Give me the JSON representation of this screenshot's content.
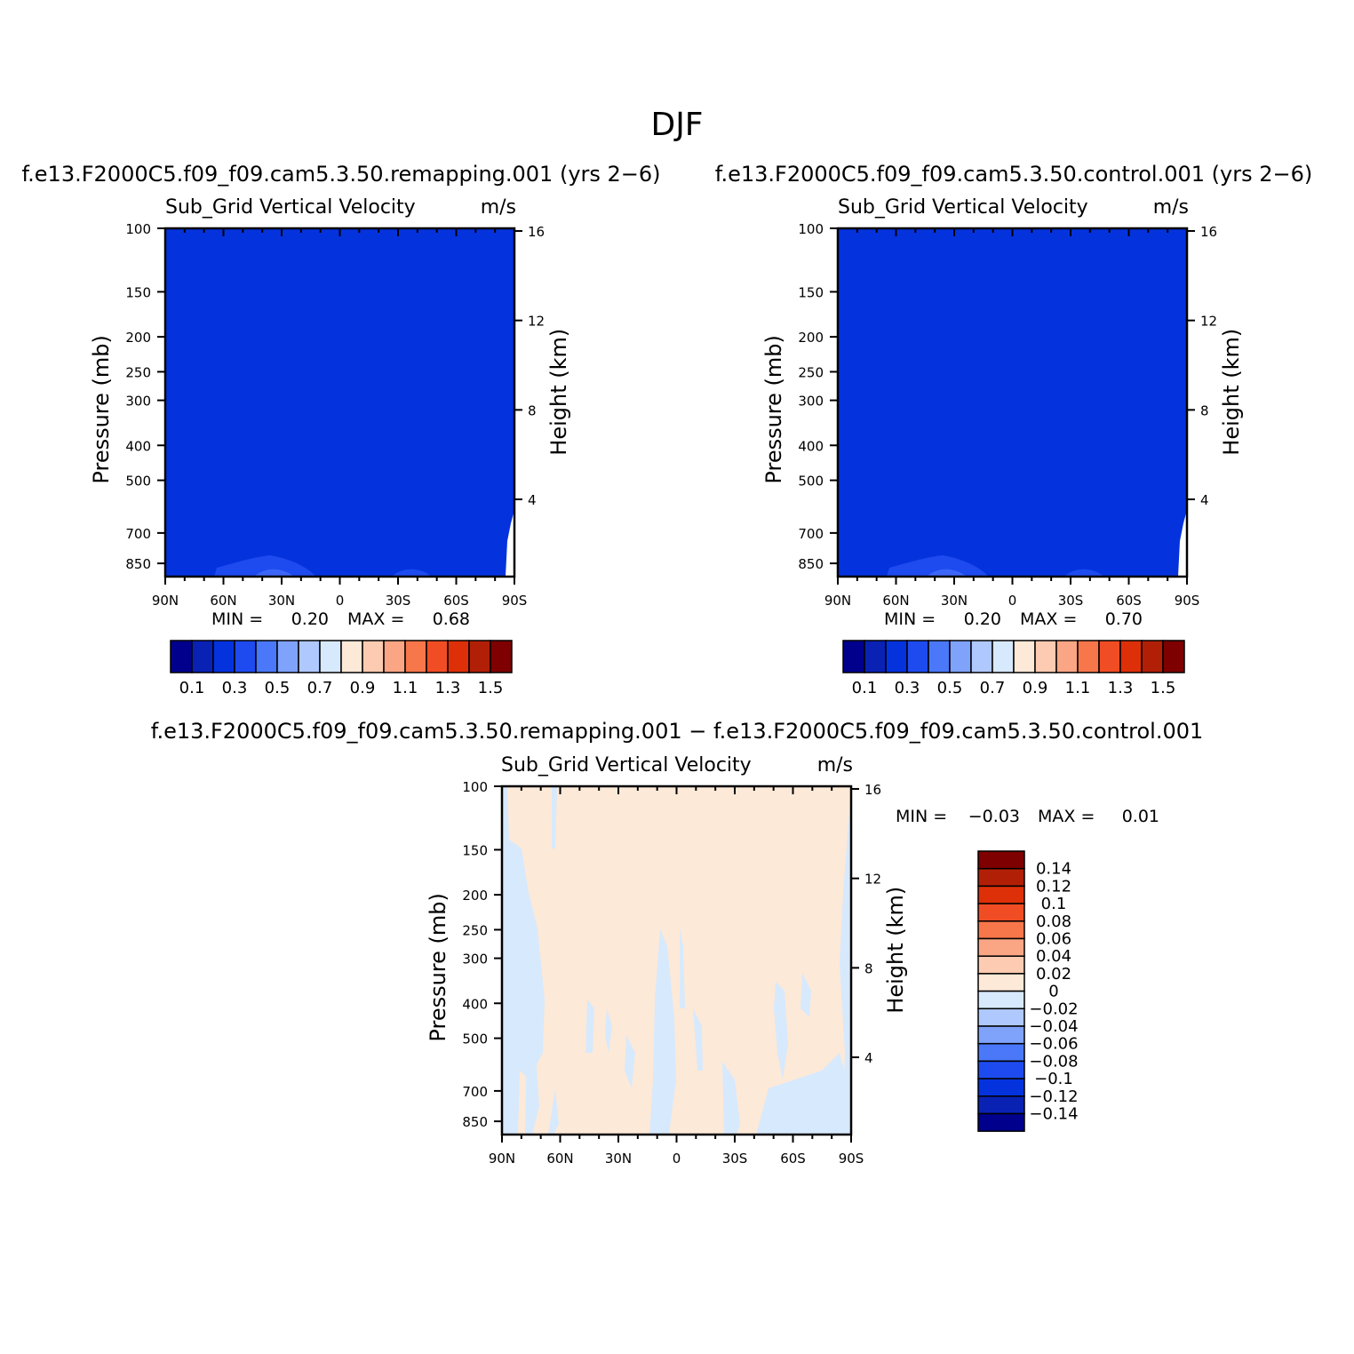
{
  "page": {
    "title": "DJF"
  },
  "colors": {
    "blue_field": "#0433DE",
    "blue_band": "#1E4BEF",
    "blue_band2": "#3C66F7",
    "diff_pos": "#FDE9D7",
    "diff_neg": "#D7E9FD",
    "axis": "#000000"
  },
  "palettes": {
    "top": [
      "#00008C",
      "#0A22B4",
      "#0433DE",
      "#1E4BEF",
      "#4A78F8",
      "#7FA2FB",
      "#AFC8FD",
      "#D7E9FD",
      "#FDE9D7",
      "#FCCBB1",
      "#FAA584",
      "#F7764A",
      "#F14D24",
      "#DE3008",
      "#B21F07",
      "#7E0000"
    ],
    "diff": [
      "#7E0000",
      "#B21F07",
      "#DE3008",
      "#F14D24",
      "#F7764A",
      "#FAA584",
      "#FCCBB1",
      "#FDE9D7",
      "#D7E9FD",
      "#AFC8FD",
      "#7FA2FB",
      "#4A78F8",
      "#1E4BEF",
      "#0433DE",
      "#0A22B4",
      "#00008C"
    ]
  },
  "chart_data": [
    {
      "type": "heatmap",
      "title": "f.e13.F2000C5.f09_f09.cam5.3.50.remapping.001 (yrs 2−6)",
      "subtitle": "Sub_Grid Vertical Velocity",
      "units": "m/s",
      "xlabel": "",
      "ylabel": "Pressure (mb)",
      "ylabel_right": "Height (km)",
      "x_ticks": [
        "90N",
        "60N",
        "30N",
        "0",
        "30S",
        "60S",
        "90S"
      ],
      "y_ticks": [
        "100",
        "150",
        "200",
        "250",
        "300",
        "400",
        "500",
        "700",
        "850"
      ],
      "y2_ticks": [
        "16",
        "12",
        "8",
        "4"
      ],
      "y_scale": "log",
      "ylim": [
        100,
        925
      ],
      "xlim": [
        -90,
        90
      ],
      "min_label": "MIN =",
      "min_value": "0.20",
      "max_label": "MAX =",
      "max_value": "0.68",
      "colorbar_labels": [
        "0.1",
        "0.3",
        "0.5",
        "0.7",
        "0.9",
        "1.1",
        "1.3",
        "1.5"
      ]
    },
    {
      "type": "heatmap",
      "title": "f.e13.F2000C5.f09_f09.cam5.3.50.control.001 (yrs 2−6)",
      "subtitle": "Sub_Grid Vertical Velocity",
      "units": "m/s",
      "xlabel": "",
      "ylabel": "Pressure (mb)",
      "ylabel_right": "Height (km)",
      "x_ticks": [
        "90N",
        "60N",
        "30N",
        "0",
        "30S",
        "60S",
        "90S"
      ],
      "y_ticks": [
        "100",
        "150",
        "200",
        "250",
        "300",
        "400",
        "500",
        "700",
        "850"
      ],
      "y2_ticks": [
        "16",
        "12",
        "8",
        "4"
      ],
      "y_scale": "log",
      "ylim": [
        100,
        925
      ],
      "xlim": [
        -90,
        90
      ],
      "min_label": "MIN =",
      "min_value": "0.20",
      "max_label": "MAX =",
      "max_value": "0.70",
      "colorbar_labels": [
        "0.1",
        "0.3",
        "0.5",
        "0.7",
        "0.9",
        "1.1",
        "1.3",
        "1.5"
      ]
    },
    {
      "type": "heatmap",
      "title": "f.e13.F2000C5.f09_f09.cam5.3.50.remapping.001 − f.e13.F2000C5.f09_f09.cam5.3.50.control.001",
      "subtitle": "Sub_Grid Vertical Velocity",
      "units": "m/s",
      "xlabel": "",
      "ylabel": "Pressure (mb)",
      "ylabel_right": "Height (km)",
      "x_ticks": [
        "90N",
        "60N",
        "30N",
        "0",
        "30S",
        "60S",
        "90S"
      ],
      "y_ticks": [
        "100",
        "150",
        "200",
        "250",
        "300",
        "400",
        "500",
        "700",
        "850"
      ],
      "y2_ticks": [
        "16",
        "12",
        "8",
        "4"
      ],
      "y_scale": "log",
      "ylim": [
        100,
        925
      ],
      "xlim": [
        -90,
        90
      ],
      "min_label": "MIN =",
      "min_value": "−0.03",
      "max_label": "MAX =",
      "max_value": "0.01",
      "colorbar_labels": [
        "0.14",
        "0.12",
        "0.1",
        "0.08",
        "0.06",
        "0.04",
        "0.02",
        "0",
        "−0.02",
        "−0.04",
        "−0.06",
        "−0.08",
        "−0.1",
        "−0.12",
        "−0.14"
      ]
    }
  ]
}
